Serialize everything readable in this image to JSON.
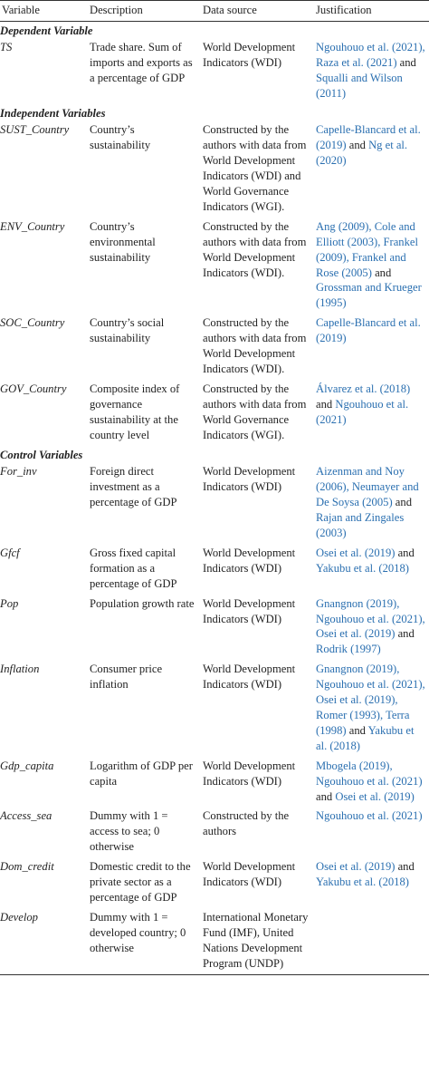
{
  "table": {
    "header": [
      "Variable",
      "Description",
      "Data source",
      "Justification"
    ],
    "sections": [
      {
        "title": "Dependent Variable",
        "rows": [
          {
            "variable": "TS",
            "description": "Trade share. Sum of imports and exports as a percentage of GDP",
            "source": "World Development Indicators (WDI)",
            "justification": [
              "Ngouhouo et al. (2021),",
              " ",
              "Raza et al. (2021)",
              " and ",
              "Squalli and Wilson (2011)"
            ]
          }
        ]
      },
      {
        "title": "Independent Variables",
        "rows": [
          {
            "variable": "SUST_Country",
            "description": "Country’s sustainability",
            "source": "Constructed by the authors with data from World Development Indicators (WDI) and World Governance Indicators (WGI).",
            "justification": [
              "Capelle-Blancard et al. (2019)",
              " and ",
              "Ng et al. (2020)"
            ]
          },
          {
            "variable": "ENV_Country",
            "description": "Country’s environmental sustainability",
            "source": "Constructed by the authors with data from World Development Indicators (WDI).",
            "justification": [
              "Ang (2009),",
              " ",
              "Cole and Elliott (2003),",
              " ",
              "Frankel (2009),",
              " ",
              "Frankel and Rose (2005)",
              " and ",
              "Grossman and Krueger (1995)"
            ]
          },
          {
            "variable": "SOC_Country",
            "description": "Country’s social sustainability",
            "source": "Constructed by the authors with data from World Development Indicators (WDI).",
            "justification": [
              "Capelle-Blancard et al. (2019)"
            ]
          },
          {
            "variable": "GOV_Country",
            "description": "Composite index of governance sustainability at the country level",
            "source": "Constructed by the authors with data from World Governance Indicators (WGI).",
            "justification": [
              "Álvarez et al. (2018)",
              " and ",
              "Ngouhouo et al. (2021)"
            ]
          }
        ]
      },
      {
        "title": "Control Variables",
        "rows": [
          {
            "variable": "For_inv",
            "description": "Foreign direct investment as a percentage of GDP",
            "source": "World Development Indicators (WDI)",
            "justification": [
              "Aizenman and Noy (2006),",
              " ",
              "Neumayer and De Soysa (2005)",
              " and ",
              "Rajan and Zingales (2003)"
            ]
          },
          {
            "variable": "Gfcf",
            "description": "Gross fixed capital formation as a percentage of GDP",
            "source": "World Development Indicators (WDI)",
            "justification": [
              "Osei et al. (2019)",
              " and ",
              "Yakubu et al. (2018)"
            ]
          },
          {
            "variable": "Pop",
            "description": "Population growth rate",
            "source": "World Development Indicators (WDI)",
            "justification": [
              "Gnangnon (2019),",
              " ",
              "Ngouhouo et al. (2021),",
              " ",
              "Osei et al. (2019)",
              " and ",
              "Rodrik (1997)"
            ]
          },
          {
            "variable": "Inflation",
            "description": "Consumer price inflation",
            "source": "World Development Indicators (WDI)",
            "justification": [
              "Gnangnon (2019),",
              " ",
              "Ngouhouo et al. (2021),",
              " ",
              "Osei et al. (2019),",
              " ",
              "Romer (1993),",
              " ",
              "Terra (1998)",
              " and ",
              "Yakubu et al. (2018)"
            ]
          },
          {
            "variable": "Gdp_capita",
            "description": "Logarithm of GDP per capita",
            "source": "World Development Indicators (WDI)",
            "justification": [
              "Mbogela (2019),",
              " ",
              "Ngouhouo et al. (2021)",
              " and ",
              "Osei et al. (2019)"
            ]
          },
          {
            "variable": "Access_sea",
            "description": "Dummy with 1 = access to sea; 0 otherwise",
            "source": "Constructed by the authors",
            "justification": [
              "Ngouhouo et al. (2021)"
            ]
          },
          {
            "variable": "Dom_credit",
            "description": "Domestic credit to the private sector as a percentage of GDP",
            "source": "World Development Indicators (WDI)",
            "justification": [
              "Osei et al. (2019)",
              " and ",
              "Yakubu et al. (2018)"
            ]
          },
          {
            "variable": "Develop",
            "description": "Dummy with 1 = developed country; 0 otherwise",
            "source": "International Monetary Fund (IMF), United Nations Development Program (UNDP)"
          }
        ]
      }
    ]
  }
}
